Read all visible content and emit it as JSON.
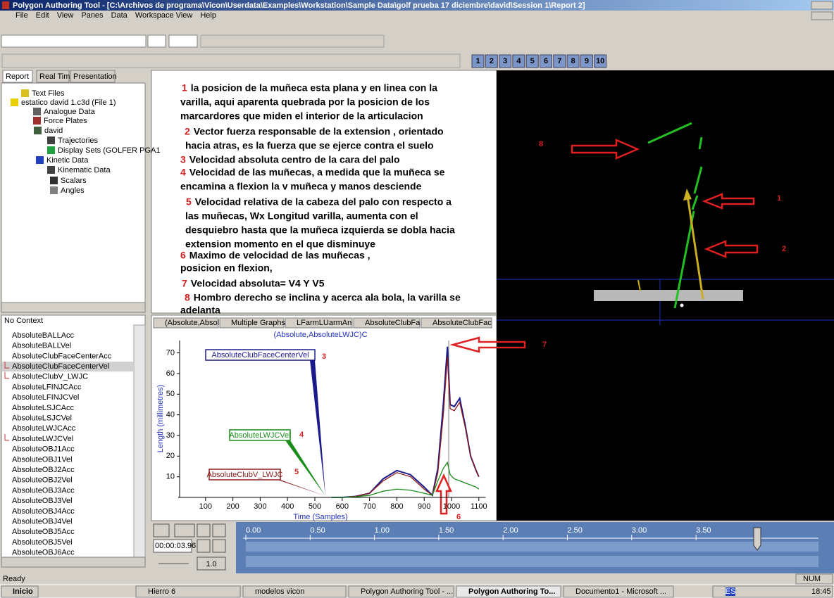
{
  "window": {
    "title": "Polygon Authoring Tool - [C:\\Archivos de programa\\Vicon\\Userdata\\Examples\\Workstation\\Sample Data\\golf prueba 17 diciembre\\david\\Session 1\\Report 2]"
  },
  "menu": [
    "File",
    "Edit",
    "View",
    "Panes",
    "Data",
    "Workspace View",
    "Help"
  ],
  "toolbar": {
    "numbers": [
      "1",
      "2",
      "3",
      "4",
      "5",
      "6",
      "7",
      "8",
      "9",
      "10"
    ]
  },
  "left_tabs": [
    "Report",
    "Real Time",
    "Presentation"
  ],
  "tree": [
    "Text Files",
    "estatico david 1.c3d (File 1)",
    "Analogue Data",
    "Force Plates",
    "david",
    "Trajectories",
    "Display Sets (GOLFER PGA1",
    "Kinetic Data",
    "Kinematic Data",
    "Scalars",
    "Angles"
  ],
  "context_list": {
    "header": "No Context",
    "items": [
      "AbsoluteBALLAcc",
      "AbsoluteBALLVel",
      "AbsoluteClubFaceCenterAcc",
      "AbsoluteClubFaceCenterVel",
      "AbsoluteClubV_LWJC",
      "AbsoluteLFINJCAcc",
      "AbsoluteLFINJCVel",
      "AbsoluteLSJCAcc",
      "AbsoluteLSJCVel",
      "AbsoluteLWJCAcc",
      "AbsoluteLWJCVel",
      "AbsoluteOBJ1Acc",
      "AbsoluteOBJ1Vel",
      "AbsoluteOBJ2Acc",
      "AbsoluteOBJ2Vel",
      "AbsoluteOBJ3Acc",
      "AbsoluteOBJ3Vel",
      "AbsoluteOBJ4Acc",
      "AbsoluteOBJ4Vel",
      "AbsoluteOBJ5Acc",
      "AbsoluteOBJ5Vel",
      "AbsoluteOBJ6Acc"
    ]
  },
  "notes": [
    {
      "number": "1",
      "lines": [
        "la posicion de la muñeca esta plana y en linea con la",
        "varilla, aqui aparenta quebrada por la posicion de los",
        "marcardores que miden el interior de la articulacion"
      ]
    },
    {
      "number": "2",
      "lines": [
        "Vector fuerza responsable de la extension , orientado",
        "hacia atras, es la fuerza que se ejerce contra el suelo"
      ]
    },
    {
      "number": "3",
      "lines": [
        "Velocidad absoluta centro de la cara del palo"
      ]
    },
    {
      "number": "4",
      "lines": [
        "Velocidad de las muñecas, a medida que la muñeca se",
        "encamina a flexion la v muñeca y manos desciende"
      ]
    },
    {
      "number": "5",
      "lines": [
        "Velocidad relativa de la cabeza del palo con respecto a",
        "las muñecas, Wx Longitud varilla, aumenta con el",
        "desquiebro hasta que la muñeca izquierda se dobla hacia",
        "extension momento en el que disminuye"
      ]
    },
    {
      "number": "6",
      "lines": [
        "Maximo de velocidad de las muñecas ,",
        "posicion en flexion,"
      ]
    },
    {
      "number": "7",
      "lines": [
        "Velocidad absoluta= V4 Y V5"
      ]
    },
    {
      "number": "8",
      "lines": [
        "Hombro derecho se inclina y acerca ala bola, la varilla se",
        "adelanta"
      ]
    }
  ],
  "graph_tabs": [
    "(Absolute,Absol",
    "Multiple Graphs",
    "LFarmLUarmAn",
    "AbsoluteClubFa",
    "AbsoluteClubFac"
  ],
  "graph": {
    "subtitle": "(Absolute,AbsoluteLWJC)C",
    "x_label": "Time (Samples)",
    "y_label": "Length (millimetres)",
    "xlim": [
      0,
      1125
    ],
    "ylim": [
      0,
      76
    ],
    "xticks": [
      100,
      200,
      300,
      400,
      500,
      600,
      700,
      800,
      900,
      1000,
      1100
    ],
    "yticks": [
      10,
      20,
      30,
      40,
      50,
      60,
      70
    ],
    "x": [
      560,
      600,
      650,
      700,
      750,
      800,
      850,
      900,
      930,
      950,
      970,
      985,
      995,
      1010,
      1030,
      1050,
      1070,
      1090,
      1100
    ],
    "series": [
      {
        "name": "AbsoluteClubFaceCenterVel",
        "color": "#1a1a8c",
        "values": [
          0,
          0,
          0.5,
          2,
          9,
          13,
          11,
          5,
          1,
          14,
          45,
          73,
          45,
          44,
          48,
          35,
          20,
          13,
          10
        ]
      },
      {
        "name": "AbsoluteLWJCVel",
        "color": "#1a8c1a",
        "values": [
          0,
          0,
          0.3,
          1,
          3,
          4,
          3.5,
          2,
          1,
          8,
          14,
          17,
          11,
          9,
          8,
          7,
          6,
          5,
          4
        ]
      },
      {
        "name": "AbsoluteClubV_LWJC",
        "color": "#8c1a1a",
        "values": [
          0,
          0,
          0.5,
          2,
          8,
          12,
          10,
          4,
          1,
          12,
          40,
          68,
          43,
          42,
          46,
          34,
          20,
          13,
          10
        ]
      }
    ],
    "annotations": [
      "3",
      "4",
      "5",
      "6",
      "7"
    ]
  },
  "view3d": {
    "annotations": [
      "8",
      "1",
      "2"
    ]
  },
  "timeline": {
    "time": "00:00:03.96",
    "speed": "1.0",
    "ticks": [
      "0.00",
      "0.50",
      "1.00",
      "1.50",
      "2.00",
      "2.50",
      "3.00",
      "3.50"
    ]
  },
  "status": {
    "left": "Ready",
    "right": "NUM"
  },
  "taskbar": {
    "start": "Inicio",
    "items": [
      "Hierro 6",
      "modelos vicon",
      "Polygon Authoring Tool - ...",
      "Polygon Authoring To...",
      "Documento1 - Microsoft ..."
    ],
    "language": "ES",
    "clock": "18:45"
  }
}
